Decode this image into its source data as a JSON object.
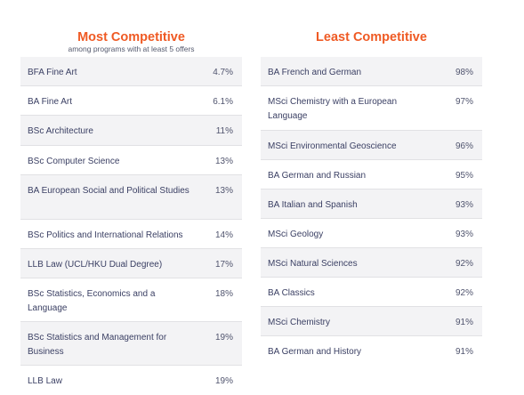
{
  "most": {
    "title": "Most Competitive",
    "subtitle": "among programs with at least 5 offers",
    "rows": [
      {
        "program": "BFA Fine Art",
        "rate": "4.7%"
      },
      {
        "program": "BA Fine Art",
        "rate": "6.1%"
      },
      {
        "program": "BSc Architecture",
        "rate": "11%"
      },
      {
        "program": "BSc Computer Science",
        "rate": "13%"
      },
      {
        "program": "BA European Social and Political Studies",
        "rate": "13%"
      },
      {
        "program": "BSc Politics and International Relations",
        "rate": "14%"
      },
      {
        "program": "LLB Law (UCL/HKU Dual Degree)",
        "rate": "17%"
      },
      {
        "program": "BSc Statistics, Economics and a Language",
        "rate": "18%"
      },
      {
        "program": "BSc Statistics and Management for Business",
        "rate": "19%"
      },
      {
        "program": "LLB Law",
        "rate": "19%"
      }
    ]
  },
  "least": {
    "title": "Least Competitive",
    "rows": [
      {
        "program": "BA French and German",
        "rate": "98%"
      },
      {
        "program": "MSci Chemistry with a European Language",
        "rate": "97%"
      },
      {
        "program": "MSci Environmental Geoscience",
        "rate": "96%"
      },
      {
        "program": "BA German and Russian",
        "rate": "95%"
      },
      {
        "program": "BA Italian and Spanish",
        "rate": "93%"
      },
      {
        "program": "MSci Geology",
        "rate": "93%"
      },
      {
        "program": "MSci Natural Sciences",
        "rate": "92%"
      },
      {
        "program": "BA Classics",
        "rate": "92%"
      },
      {
        "program": "MSci Chemistry",
        "rate": "91%"
      },
      {
        "program": "BA German and History",
        "rate": "91%"
      }
    ]
  }
}
